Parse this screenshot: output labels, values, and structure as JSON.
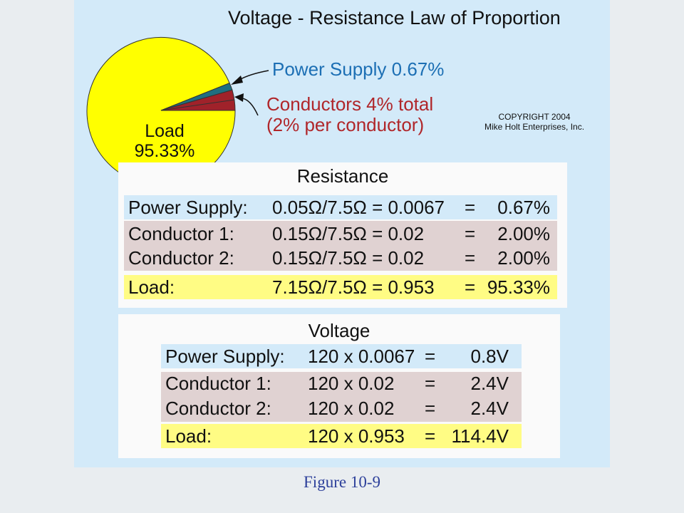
{
  "title": "Voltage - Resistance Law of Proportion",
  "pie": {
    "labels": {
      "power_supply": "Power Supply 0.67%",
      "conductors_line1": "Conductors 4% total",
      "conductors_line2": "(2% per conductor)",
      "load_line1": "Load",
      "load_line2": "95.33%"
    },
    "slices": [
      {
        "name": "Load",
        "percent": 95.33,
        "color": "#ffff00"
      },
      {
        "name": "Power Supply",
        "percent": 0.67,
        "color": "#1f6f80"
      },
      {
        "name": "Conductors",
        "percent": 4.0,
        "color": "#a0222a"
      }
    ]
  },
  "copyright": {
    "line1": "COPYRIGHT 2004",
    "line2": "Mike Holt Enterprises, Inc."
  },
  "resistance": {
    "title": "Resistance",
    "rows": [
      {
        "label": "Power Supply:",
        "formula": "0.05Ω/7.5Ω = 0.0067",
        "eq": "=",
        "result": "0.67%"
      },
      {
        "label": "Conductor 1:",
        "formula": "0.15Ω/7.5Ω = 0.02",
        "eq": "=",
        "result": "2.00%"
      },
      {
        "label": "Conductor 2:",
        "formula": "0.15Ω/7.5Ω = 0.02",
        "eq": "=",
        "result": "2.00%"
      },
      {
        "label": "Load:",
        "formula": "7.15Ω/7.5Ω = 0.953",
        "eq": "=",
        "result": "95.33%"
      }
    ]
  },
  "voltage": {
    "title": "Voltage",
    "rows": [
      {
        "label": "Power Supply:",
        "formula": "120 x 0.0067",
        "eq": "=",
        "result": "0.8V"
      },
      {
        "label": "Conductor 1:",
        "formula": "120 x 0.02",
        "eq": "=",
        "result": "2.4V"
      },
      {
        "label": "Conductor 2:",
        "formula": "120 x 0.02",
        "eq": "=",
        "result": "2.4V"
      },
      {
        "label": "Load:",
        "formula": "120 x 0.953",
        "eq": "=",
        "result": "114.4V"
      }
    ]
  },
  "figure_caption": "Figure 10-9"
}
